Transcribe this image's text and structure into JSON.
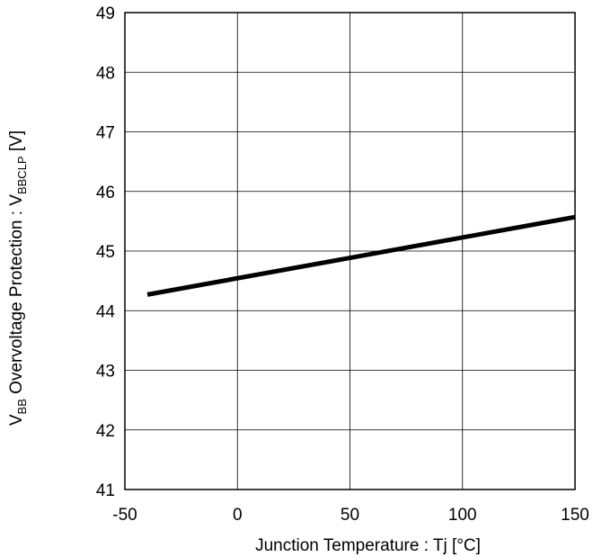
{
  "chart_data": {
    "type": "line",
    "xlabel": "Junction Temperature : Tj [°C]",
    "ylabel": {
      "v1": "V",
      "s1": "BB",
      "text": " Overvoltage Protection : V",
      "s2": "BBCLP",
      "unit": " [V]"
    },
    "xlim": [
      -50,
      150
    ],
    "ylim": [
      41,
      49
    ],
    "xticks": [
      -50,
      0,
      50,
      100,
      150
    ],
    "yticks": [
      41,
      42,
      43,
      44,
      45,
      46,
      47,
      48,
      49
    ],
    "x_tick_labels": [
      "-50",
      "0",
      "50",
      "100",
      "150"
    ],
    "y_tick_labels": [
      "41",
      "42",
      "43",
      "44",
      "45",
      "46",
      "47",
      "48",
      "49"
    ],
    "grid": true,
    "legend": "none",
    "series": [
      {
        "x": [
          -40,
          150
        ],
        "y": [
          44.27,
          45.57
        ],
        "color": "#000000"
      }
    ]
  }
}
